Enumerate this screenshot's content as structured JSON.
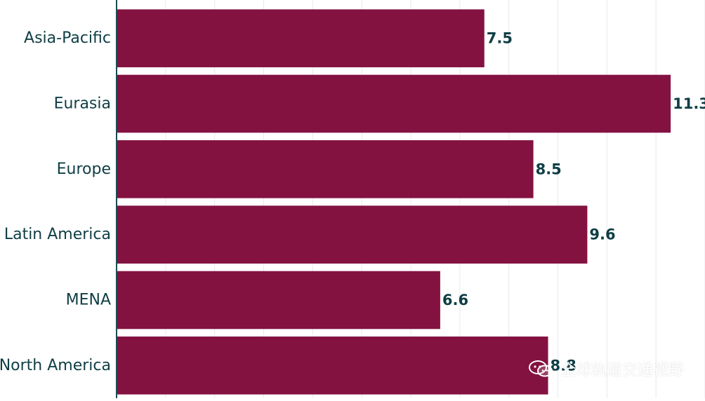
{
  "chart_data": {
    "type": "bar",
    "orientation": "horizontal",
    "categories": [
      "Asia-Pacific",
      "Eurasia",
      "Europe",
      "Latin America",
      "MENA",
      "North America"
    ],
    "values": [
      7.5,
      11.3,
      8.5,
      9.6,
      6.6,
      8.8
    ],
    "value_labels": [
      "7.5",
      "11.3",
      "8.5",
      "9.6",
      "6.6",
      "8.8"
    ],
    "xlim": [
      0,
      12
    ],
    "grid": true,
    "legend": "none",
    "colors": {
      "bar": "#831241",
      "text": "#0f3e45",
      "axis": "#1d4c55",
      "grid": "#e7e9ec"
    }
  },
  "watermark": {
    "text": "全球轨道交通视野",
    "icon": "wechat-icon"
  }
}
